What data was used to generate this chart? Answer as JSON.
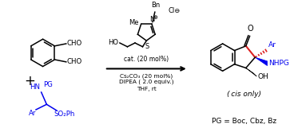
{
  "bg_color": "#ffffff",
  "blue_color": "#0000ee",
  "red_color": "#dd2222",
  "black_color": "#000000",
  "reagents_line1": "cat. (20 mol%)",
  "reagents_line2": "Cs₂CO₃ (20 mol%)",
  "reagents_line3": "DIPEA ( 2.0 equiv.)",
  "reagents_line4": "THF, rt",
  "cis_label": "(cis only)",
  "pg_label": "PG = Boc, Cbz, Bz"
}
